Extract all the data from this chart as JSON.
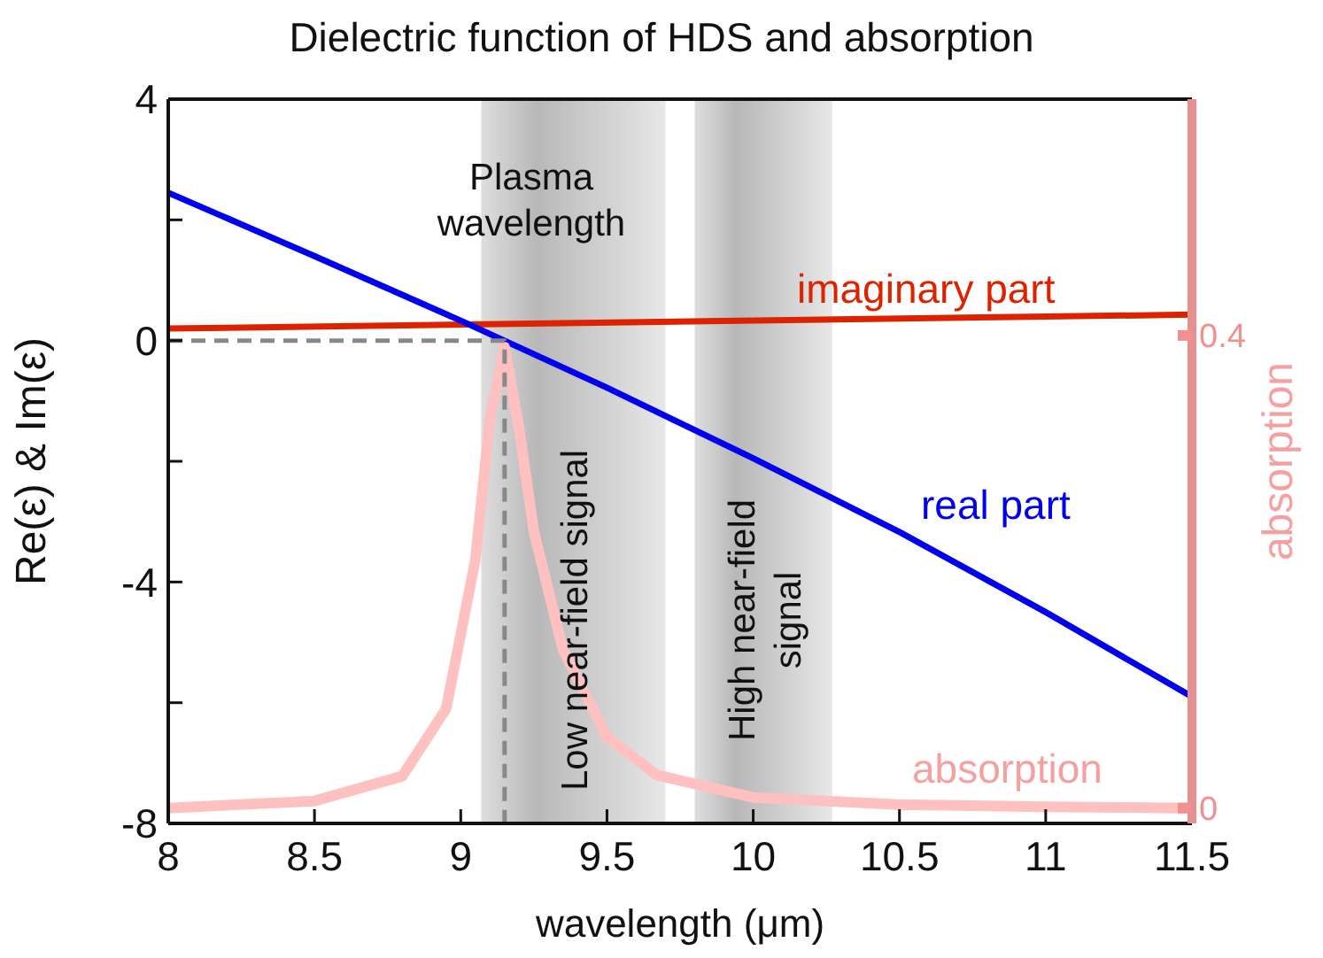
{
  "chart_data": {
    "type": "line",
    "title": "Dielectric function of HDS and absorption",
    "xlabel": "wavelength (μm)",
    "ylabel": "Re(ε) & Im(ε)",
    "y2label": "absorption",
    "annotations": [
      "Plasma wavelength"
    ],
    "xlim": [
      8,
      11.5
    ],
    "xticks": [
      8,
      8.5,
      9,
      9.5,
      10,
      10.5,
      11,
      11.5
    ],
    "ylim": [
      -8,
      4
    ],
    "yticks": [
      -8,
      {
        "value": -6,
        "label": null
      },
      -4,
      {
        "value": -2,
        "label": null
      },
      0,
      {
        "value": 2,
        "label": null
      },
      4
    ],
    "y2lim": [
      -0.013,
      0.6
    ],
    "y2ticks": [
      0,
      0.4
    ],
    "grid": false,
    "legend": false,
    "marker": "none",
    "bands": [
      {
        "axis": "x",
        "from": 9.07,
        "to": 9.7,
        "label": "Low near-field signal",
        "color": "#a0a0a0"
      },
      {
        "axis": "x",
        "from": 9.8,
        "to": 10.27,
        "label": "High near-field signal",
        "color": "#a0a0a0"
      }
    ],
    "series": [
      {
        "name": "imaginary part",
        "color": "#dd2200",
        "x": [
          8,
          11.5
        ],
        "values": [
          0.2,
          0.43
        ]
      },
      {
        "name": "real part",
        "color": "#0000ee",
        "x": [
          8,
          8.5,
          9,
          9.5,
          10,
          10.5,
          11,
          11.5
        ],
        "values": [
          2.45,
          1.4,
          0.33,
          -0.78,
          -1.95,
          -3.17,
          -4.5,
          -5.9
        ]
      },
      {
        "name": "absorption",
        "color": "#ffc0c0",
        "axis": "y2",
        "x": [
          8,
          8.5,
          8.8,
          8.95,
          9.05,
          9.1,
          9.15,
          9.2,
          9.25,
          9.35,
          9.5,
          9.67,
          10,
          10.5,
          11,
          11.5
        ],
        "values": [
          0.0,
          0.006,
          0.027,
          0.084,
          0.21,
          0.33,
          0.39,
          0.32,
          0.234,
          0.134,
          0.06,
          0.028,
          0.009,
          0.003,
          0.001,
          0.0
        ]
      },
      {
        "color": "#888888",
        "line_style": "dashed",
        "x": [
          8,
          9.15,
          9.15
        ],
        "values": [
          0,
          0,
          -8
        ]
      }
    ]
  }
}
